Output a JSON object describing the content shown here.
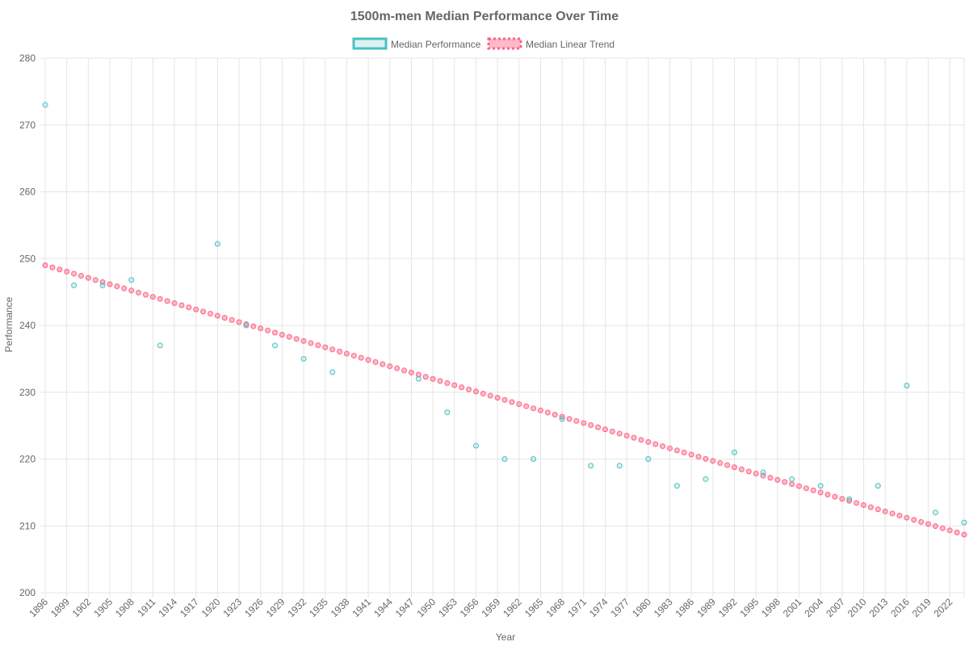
{
  "colors": {
    "median": "#4bc0c0",
    "median_fill": "rgba(75,192,192,0.2)",
    "trend": "#ff6384",
    "trend_fill": "rgba(255,99,132,0.45)",
    "grid": "#e5e5e5",
    "text": "#666666"
  },
  "chart_data": {
    "type": "scatter",
    "title": "1500m-men Median Performance Over Time",
    "xlabel": "Year",
    "ylabel": "Performance",
    "xlim": [
      1896,
      2024
    ],
    "ylim": [
      200,
      280
    ],
    "y_ticks": [
      200,
      210,
      220,
      230,
      240,
      250,
      260,
      270,
      280
    ],
    "x_ticks": [
      1896,
      1899,
      1902,
      1905,
      1908,
      1911,
      1914,
      1917,
      1920,
      1923,
      1926,
      1929,
      1932,
      1935,
      1938,
      1941,
      1944,
      1947,
      1950,
      1953,
      1956,
      1959,
      1962,
      1965,
      1968,
      1971,
      1974,
      1977,
      1980,
      1983,
      1986,
      1989,
      1992,
      1995,
      1998,
      2001,
      2004,
      2007,
      2010,
      2013,
      2016,
      2019,
      2022
    ],
    "grid": true,
    "legend_position": "top-center",
    "series": [
      {
        "name": "Median Performance",
        "style": "points",
        "points": [
          [
            1896,
            273
          ],
          [
            1900,
            246
          ],
          [
            1904,
            246
          ],
          [
            1908,
            246.8
          ],
          [
            1912,
            237
          ],
          [
            1920,
            252.2
          ],
          [
            1924,
            240
          ],
          [
            1928,
            237
          ],
          [
            1932,
            235
          ],
          [
            1936,
            233
          ],
          [
            1948,
            232
          ],
          [
            1952,
            227
          ],
          [
            1956,
            222
          ],
          [
            1960,
            220
          ],
          [
            1964,
            220
          ],
          [
            1968,
            226
          ],
          [
            1972,
            219
          ],
          [
            1976,
            219
          ],
          [
            1980,
            220
          ],
          [
            1984,
            216
          ],
          [
            1988,
            217
          ],
          [
            1992,
            221
          ],
          [
            1996,
            218
          ],
          [
            2000,
            217
          ],
          [
            2004,
            216
          ],
          [
            2008,
            214
          ],
          [
            2012,
            216
          ],
          [
            2016,
            231
          ],
          [
            2020,
            212
          ],
          [
            2024,
            210.5
          ]
        ]
      },
      {
        "name": "Median Linear Trend",
        "style": "dotted-line",
        "x_start": 1896,
        "x_end": 2024,
        "y_start": 249,
        "y_end": 208.7
      }
    ]
  }
}
